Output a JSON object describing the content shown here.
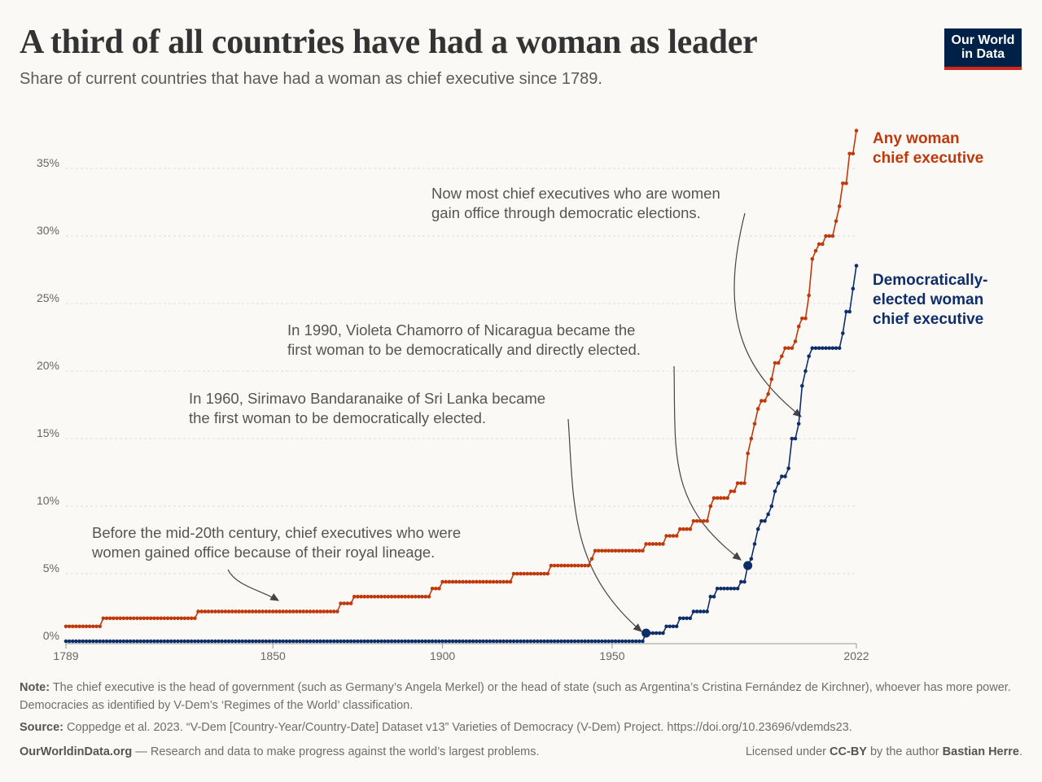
{
  "header": {
    "title": "A third of all countries have had a woman as leader",
    "subtitle": "Share of current countries that have had a woman as chief executive since 1789.",
    "logo_line1": "Our World",
    "logo_line2": "in Data"
  },
  "colors": {
    "any": "#c0390b",
    "democratic": "#0e2e6b",
    "logo_bg": "#002147",
    "logo_accent": "#ce261e"
  },
  "chart_data": {
    "type": "line",
    "step": true,
    "xlim": [
      1789,
      2022
    ],
    "ylim": [
      0,
      37.8
    ],
    "x_ticks": [
      "1789",
      "1850",
      "1900",
      "1950",
      "2022"
    ],
    "x_tick_values": [
      1789,
      1850,
      1900,
      1950,
      2022
    ],
    "y_ticks": [
      "0%",
      "5%",
      "10%",
      "15%",
      "20%",
      "25%",
      "30%",
      "35%"
    ],
    "y_tick_values": [
      0,
      5,
      10,
      15,
      20,
      25,
      30,
      35
    ],
    "grid": "horizontal dashed",
    "series": [
      {
        "name": "Any woman chief executive",
        "name_lines": [
          "Any woman",
          "chief executive"
        ],
        "color": "#c0390b",
        "change_points": [
          [
            1789,
            1.1
          ],
          [
            1800,
            1.7
          ],
          [
            1828,
            2.2
          ],
          [
            1870,
            2.8
          ],
          [
            1874,
            3.3
          ],
          [
            1897,
            3.9
          ],
          [
            1900,
            4.4
          ],
          [
            1921,
            5.0
          ],
          [
            1932,
            5.6
          ],
          [
            1944,
            6.1
          ],
          [
            1945,
            6.7
          ],
          [
            1960,
            7.2
          ],
          [
            1966,
            7.8
          ],
          [
            1970,
            8.3
          ],
          [
            1974,
            8.9
          ],
          [
            1979,
            10.0
          ],
          [
            1980,
            10.6
          ],
          [
            1985,
            11.1
          ],
          [
            1987,
            11.7
          ],
          [
            1990,
            13.9
          ],
          [
            1991,
            15.0
          ],
          [
            1992,
            16.1
          ],
          [
            1993,
            17.2
          ],
          [
            1994,
            17.8
          ],
          [
            1996,
            18.3
          ],
          [
            1997,
            19.4
          ],
          [
            1998,
            20.6
          ],
          [
            2000,
            21.1
          ],
          [
            2001,
            21.7
          ],
          [
            2004,
            22.2
          ],
          [
            2005,
            23.3
          ],
          [
            2006,
            23.9
          ],
          [
            2008,
            25.6
          ],
          [
            2009,
            28.3
          ],
          [
            2010,
            28.9
          ],
          [
            2011,
            29.4
          ],
          [
            2013,
            30.0
          ],
          [
            2016,
            31.1
          ],
          [
            2017,
            32.2
          ],
          [
            2018,
            33.9
          ],
          [
            2020,
            36.1
          ],
          [
            2022,
            37.8
          ]
        ]
      },
      {
        "name": "Democratically-elected woman chief executive",
        "name_lines": [
          "Democratically-",
          "elected woman",
          "chief executive"
        ],
        "color": "#0e2e6b",
        "change_points": [
          [
            1789,
            0
          ],
          [
            1960,
            0.6
          ],
          [
            1966,
            1.1
          ],
          [
            1970,
            1.7
          ],
          [
            1974,
            2.2
          ],
          [
            1979,
            3.3
          ],
          [
            1981,
            3.9
          ],
          [
            1988,
            4.4
          ],
          [
            1990,
            5.6
          ],
          [
            1991,
            6.1
          ],
          [
            1992,
            7.2
          ],
          [
            1993,
            8.3
          ],
          [
            1994,
            8.9
          ],
          [
            1996,
            9.4
          ],
          [
            1997,
            10.0
          ],
          [
            1998,
            11.1
          ],
          [
            1999,
            11.7
          ],
          [
            2000,
            12.2
          ],
          [
            2002,
            12.8
          ],
          [
            2003,
            15.0
          ],
          [
            2005,
            16.1
          ],
          [
            2006,
            18.9
          ],
          [
            2007,
            20.0
          ],
          [
            2008,
            21.1
          ],
          [
            2009,
            21.7
          ],
          [
            2018,
            22.8
          ],
          [
            2019,
            24.4
          ],
          [
            2021,
            26.1
          ],
          [
            2022,
            27.8
          ]
        ],
        "highlighted": [
          [
            1960,
            0.6
          ],
          [
            1990,
            5.6
          ]
        ]
      }
    ],
    "annotations": [
      {
        "lines": [
          "Before the mid-20th century, chief executives who were",
          "women gained office because of their royal lineage."
        ]
      },
      {
        "lines": [
          "In 1960, Sirimavo Bandaranaike of Sri Lanka became",
          "the first woman to be democratically elected."
        ]
      },
      {
        "lines": [
          "In 1990, Violeta Chamorro of Nicaragua became the",
          "first woman to be democratically and directly elected."
        ]
      },
      {
        "lines": [
          "Now most chief executives who are women",
          "gain office through democratic elections."
        ]
      }
    ]
  },
  "footer": {
    "note_label": "Note:",
    "note": " The chief executive is the head of government (such as Germany’s Angela Merkel) or the head of state (such as Argentina’s Cristina Fernández de Kirchner), whoever has more power. Democracies as identified by V-Dem’s ‘Regimes of the World’ classification.",
    "source_label": "Source:",
    "source": " Coppedge et al. 2023. “V-Dem [Country-Year/Country-Date] Dataset v13” Varieties of Democracy (V-Dem) Project. https://doi.org/10.23696/vdemds23.",
    "site": "OurWorldinData.org",
    "tagline": " — Research and data to make progress against the world’s largest problems.",
    "license_pre": "Licensed under ",
    "license": "CC-BY",
    "license_mid": " by the author ",
    "author": "Bastian Herre",
    "license_end": "."
  }
}
